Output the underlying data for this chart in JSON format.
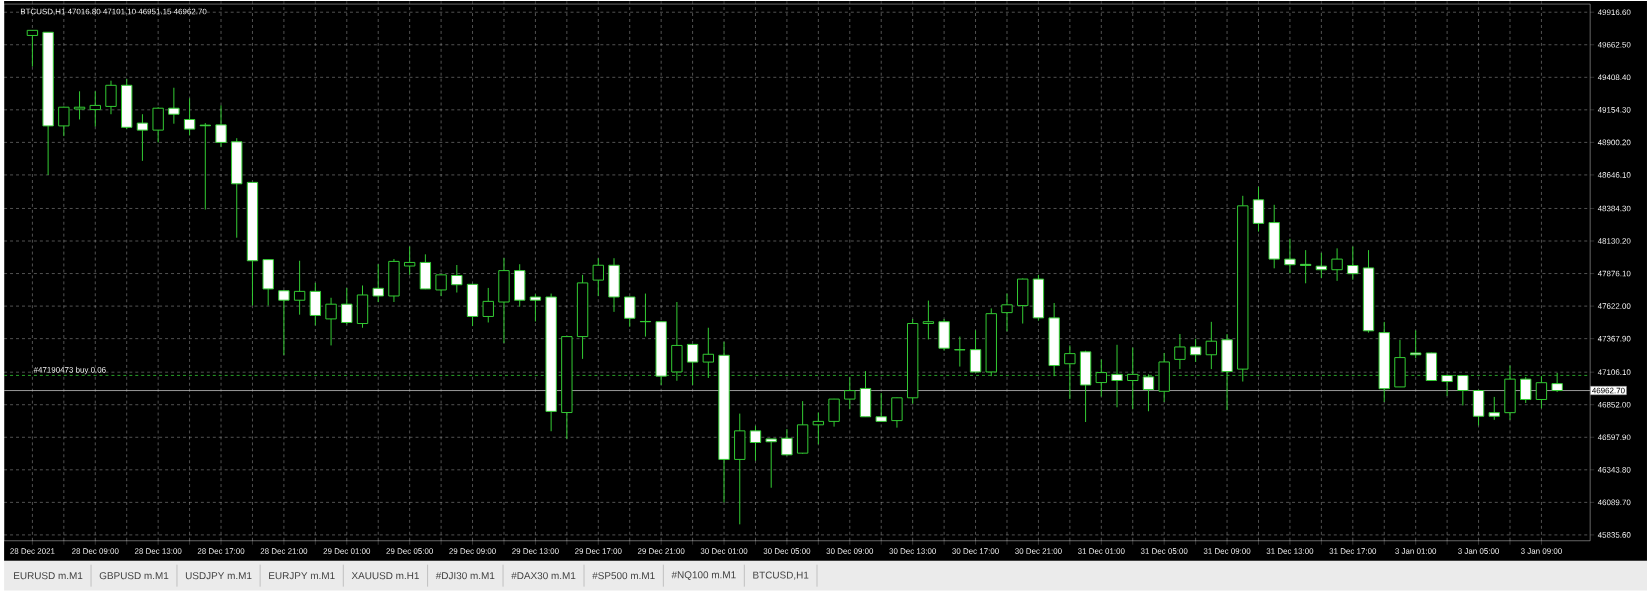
{
  "chart_data": {
    "type": "candlestick",
    "title": "BTCUSD,H1  47016.80 47101.10 46951.15 46962.70",
    "color": "#33cc33",
    "categories": [
      "28 Dec 2021",
      null,
      null,
      null,
      "28 Dec 09:00",
      null,
      null,
      null,
      "28 Dec 13:00",
      null,
      null,
      null,
      "28 Dec 17:00",
      null,
      null,
      null,
      "28 Dec 21:00",
      null,
      null,
      null,
      "29 Dec 01:00",
      null,
      null,
      null,
      "29 Dec 05:00",
      null,
      null,
      null,
      "29 Dec 09:00",
      null,
      null,
      null,
      "29 Dec 13:00",
      null,
      null,
      null,
      "29 Dec 17:00",
      null,
      null,
      null,
      "29 Dec 21:00",
      null,
      null,
      null,
      "30 Dec 01:00",
      null,
      null,
      null,
      "30 Dec 05:00",
      null,
      null,
      null,
      "30 Dec 09:00",
      null,
      null,
      null,
      "30 Dec 13:00",
      null,
      null,
      null,
      "30 Dec 17:00",
      null,
      null,
      null,
      "30 Dec 21:00",
      null,
      null,
      null,
      "31 Dec 01:00",
      null,
      null,
      null,
      "31 Dec 05:00",
      null,
      null,
      null,
      "31 Dec 09:00",
      null,
      null,
      null,
      "31 Dec 13:00",
      null,
      null,
      null,
      "31 Dec 17:00",
      null,
      null,
      null,
      "3 Jan 01:00",
      null,
      null,
      null,
      "3 Jan 05:00",
      null,
      null,
      null,
      "3 Jan 09:00",
      null
    ],
    "ohlc": [
      [
        49735,
        49776,
        49492,
        49775
      ],
      [
        49760,
        49760,
        48646,
        49029
      ],
      [
        49029,
        49180,
        48949,
        49175
      ],
      [
        49161,
        49299,
        49079,
        49175
      ],
      [
        49156,
        49299,
        49024,
        49189
      ],
      [
        49181,
        49382,
        49120,
        49346
      ],
      [
        49346,
        49396,
        49004,
        49018
      ],
      [
        49051,
        49120,
        48756,
        48996
      ],
      [
        48996,
        49175,
        48900,
        49167
      ],
      [
        49167,
        49327,
        49046,
        49120
      ],
      [
        49079,
        49244,
        48955,
        49004
      ],
      [
        49035,
        49051,
        48376,
        49030
      ],
      [
        49037,
        49189,
        48866,
        48900
      ],
      [
        48905,
        48933,
        48156,
        48577
      ],
      [
        48588,
        48590,
        47626,
        47976
      ],
      [
        47985,
        47985,
        47626,
        47756
      ],
      [
        47742,
        47745,
        47240,
        47668
      ],
      [
        47668,
        47976,
        47555,
        47737
      ],
      [
        47737,
        47803,
        47472,
        47549
      ],
      [
        47522,
        47687,
        47315,
        47637
      ],
      [
        47637,
        47764,
        47480,
        47494
      ],
      [
        47486,
        47783,
        47453,
        47709
      ],
      [
        47761,
        47949,
        47654,
        47701
      ],
      [
        47701,
        47990,
        47654,
        47971
      ],
      [
        47935,
        48087,
        47866,
        47963
      ],
      [
        47963,
        48026,
        47754,
        47756
      ],
      [
        47748,
        47870,
        47701,
        47866
      ],
      [
        47861,
        47943,
        47728,
        47789
      ],
      [
        47792,
        47795,
        47466,
        47541
      ],
      [
        47541,
        47764,
        47494,
        47659
      ],
      [
        47654,
        47998,
        47334,
        47899
      ],
      [
        47899,
        47949,
        47618,
        47668
      ],
      [
        47693,
        47715,
        47502,
        47668
      ],
      [
        47693,
        47720,
        46645,
        46800
      ],
      [
        46791,
        47386,
        46585,
        47384
      ],
      [
        47384,
        47866,
        47210,
        47803
      ],
      [
        47825,
        47996,
        47701,
        47941
      ],
      [
        47941,
        47996,
        47577,
        47693
      ],
      [
        47693,
        47695,
        47461,
        47527
      ],
      [
        47502,
        47720,
        47384,
        47500
      ],
      [
        47500,
        47502,
        47006,
        47075
      ],
      [
        47108,
        47654,
        47039,
        47315
      ],
      [
        47323,
        47325,
        47006,
        47185
      ],
      [
        47185,
        47453,
        47061,
        47246
      ],
      [
        47238,
        47343,
        46089,
        46425
      ],
      [
        46425,
        46783,
        45918,
        46648
      ],
      [
        46648,
        46687,
        46414,
        46557
      ],
      [
        46585,
        46585,
        46204,
        46563
      ],
      [
        46590,
        46662,
        46455,
        46461
      ],
      [
        46474,
        46880,
        46469,
        46695
      ],
      [
        46695,
        46791,
        46543,
        46722
      ],
      [
        46722,
        46898,
        46681,
        46896
      ],
      [
        46896,
        47067,
        46819,
        46962
      ],
      [
        46979,
        47114,
        46756,
        46758
      ],
      [
        46758,
        46943,
        46717,
        46722
      ],
      [
        46728,
        46908,
        46673,
        46906
      ],
      [
        46906,
        47522,
        46860,
        47486
      ],
      [
        47486,
        47665,
        47362,
        47500
      ],
      [
        47500,
        47522,
        47274,
        47293
      ],
      [
        47282,
        47384,
        47150,
        47280
      ],
      [
        47282,
        47433,
        47105,
        47108
      ],
      [
        47108,
        47604,
        47075,
        47563
      ],
      [
        47571,
        47720,
        47425,
        47632
      ],
      [
        47626,
        47838,
        47486,
        47833
      ],
      [
        47833,
        47866,
        47508,
        47530
      ],
      [
        47530,
        47646,
        47075,
        47158
      ],
      [
        47172,
        47315,
        46896,
        47251
      ],
      [
        47265,
        47274,
        46717,
        47006
      ],
      [
        47025,
        47205,
        46916,
        47103
      ],
      [
        47089,
        47320,
        46832,
        47041
      ],
      [
        47041,
        47298,
        46818,
        47089
      ],
      [
        47069,
        47089,
        46801,
        46971
      ],
      [
        46957,
        47256,
        46874,
        47186
      ],
      [
        47206,
        47404,
        47130,
        47303
      ],
      [
        47303,
        47367,
        47186,
        47242
      ],
      [
        47242,
        47499,
        47130,
        47348
      ],
      [
        47359,
        47404,
        46810,
        47111
      ],
      [
        47130,
        48483,
        47033,
        48405
      ],
      [
        48452,
        48553,
        48204,
        48268
      ],
      [
        48274,
        48413,
        47917,
        47989
      ],
      [
        47989,
        48148,
        47878,
        47945
      ],
      [
        47948,
        48059,
        47800,
        47939
      ],
      [
        47934,
        48037,
        47842,
        47906
      ],
      [
        47906,
        48073,
        47819,
        47989
      ],
      [
        47939,
        48087,
        47828,
        47875
      ],
      [
        47920,
        48059,
        47415,
        47429
      ],
      [
        47415,
        47499,
        46874,
        46977
      ],
      [
        46991,
        47359,
        46990,
        47220
      ],
      [
        47256,
        47432,
        47214,
        47242
      ],
      [
        47256,
        47259,
        47040,
        47041
      ],
      [
        47080,
        47089,
        46921,
        47033
      ],
      [
        47080,
        47082,
        46846,
        46963
      ],
      [
        46963,
        46970,
        46690,
        46762
      ],
      [
        46790,
        46913,
        46734,
        46762
      ],
      [
        46790,
        47158,
        46734,
        47052
      ],
      [
        47052,
        47069,
        46865,
        46893
      ],
      [
        46893,
        47075,
        46824,
        47024
      ],
      [
        47016.8,
        47101.1,
        46951.15,
        46962.7
      ]
    ],
    "ylim": [
      45790,
      49980
    ],
    "yticks": [
      {
        "value": 45835.6,
        "label": "45835.60"
      },
      {
        "value": 46089.7,
        "label": "46089.70"
      },
      {
        "value": 46343.8,
        "label": "46343.80"
      },
      {
        "value": 46597.9,
        "label": "46597.90"
      },
      {
        "value": 46852.0,
        "label": "46852.00"
      },
      {
        "value": 47106.1,
        "label": "47106.10"
      },
      {
        "value": 47367.9,
        "label": "47367.90"
      },
      {
        "value": 47622.0,
        "label": "47622.00"
      },
      {
        "value": 47876.1,
        "label": "47876.10"
      },
      {
        "value": 48130.2,
        "label": "48130.20"
      },
      {
        "value": 48384.3,
        "label": "48384.30"
      },
      {
        "value": 48646.1,
        "label": "48646.10"
      },
      {
        "value": 48900.2,
        "label": "48900.20"
      },
      {
        "value": 49154.3,
        "label": "49154.30"
      },
      {
        "value": 49408.4,
        "label": "49408.40"
      },
      {
        "value": 49662.5,
        "label": "49662.50"
      },
      {
        "value": 49916.6,
        "label": "49916.60"
      }
    ],
    "ref_lines": [
      {
        "axis": "y",
        "value": 47081,
        "label": "#47190473 buy 0.06",
        "color": "#33cc33",
        "line_style": "dashed"
      },
      {
        "axis": "y",
        "value": 46962.7,
        "label": "46962.70",
        "color": "#c0c0c0",
        "line_style": "solid"
      }
    ],
    "grid": true,
    "annotations": [
      "EURUSD  m.M1",
      "GBPUSD  m.M1",
      "USDJPY  m.M1",
      "EURJPY  m.M1",
      "XAUUSD  m.H1",
      "#DJI30  m.M1",
      "#DAX30  m.M1",
      "#SP500  m.M1",
      "#NQ100  m.M1",
      "BTCUSD,H1"
    ]
  }
}
